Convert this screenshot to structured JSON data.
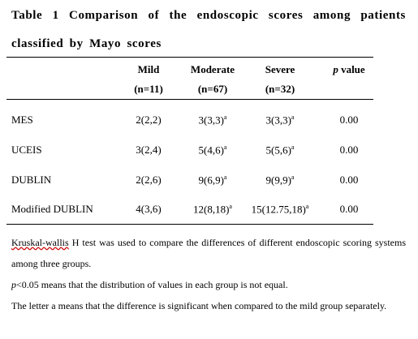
{
  "title": "Table 1 Comparison of the endoscopic scores among patients classified by Mayo scores",
  "table": {
    "header": [
      {
        "label": "Mild",
        "n": "(n=11)"
      },
      {
        "label": "Moderate",
        "n": "(n=67)"
      },
      {
        "label": "Severe",
        "n": "(n=32)"
      },
      {
        "italic": "p",
        "label": "value"
      }
    ],
    "rows": [
      {
        "label": "MES",
        "cells": [
          {
            "text": "2(2,2)"
          },
          {
            "text": "3(3,3)",
            "sup": "a"
          },
          {
            "text": "3(3,3)",
            "sup": "a"
          },
          {
            "text": "0.00"
          }
        ]
      },
      {
        "label": "UCEIS",
        "cells": [
          {
            "text": "3(2,4)"
          },
          {
            "text": "5(4,6)",
            "sup": "a"
          },
          {
            "text": "5(5,6)",
            "sup": "a"
          },
          {
            "text": "0.00"
          }
        ]
      },
      {
        "label": "DUBLIN",
        "cells": [
          {
            "text": "2(2,6)"
          },
          {
            "text": "9(6,9)",
            "sup": "a"
          },
          {
            "text": "9(9,9)",
            "sup": "a"
          },
          {
            "text": "0.00"
          }
        ]
      },
      {
        "label": "Modified DUBLIN",
        "cells": [
          {
            "text": "4(3,6)"
          },
          {
            "text": "12(8,18)",
            "sup": "a"
          },
          {
            "text": "15(12.75,18)",
            "sup": "a"
          },
          {
            "text": "0.00"
          }
        ]
      }
    ]
  },
  "notes": [
    {
      "underlined": "Kruskal-wallis",
      "text": " H test was used to compare the differences of different endoscopic scoring systems among three groups."
    },
    {
      "italic": "p",
      "text": "<0.05 means that the distribution of values in each group is not equal."
    },
    {
      "text": "The letter a means that the difference is significant when compared to the mild group separately."
    }
  ]
}
